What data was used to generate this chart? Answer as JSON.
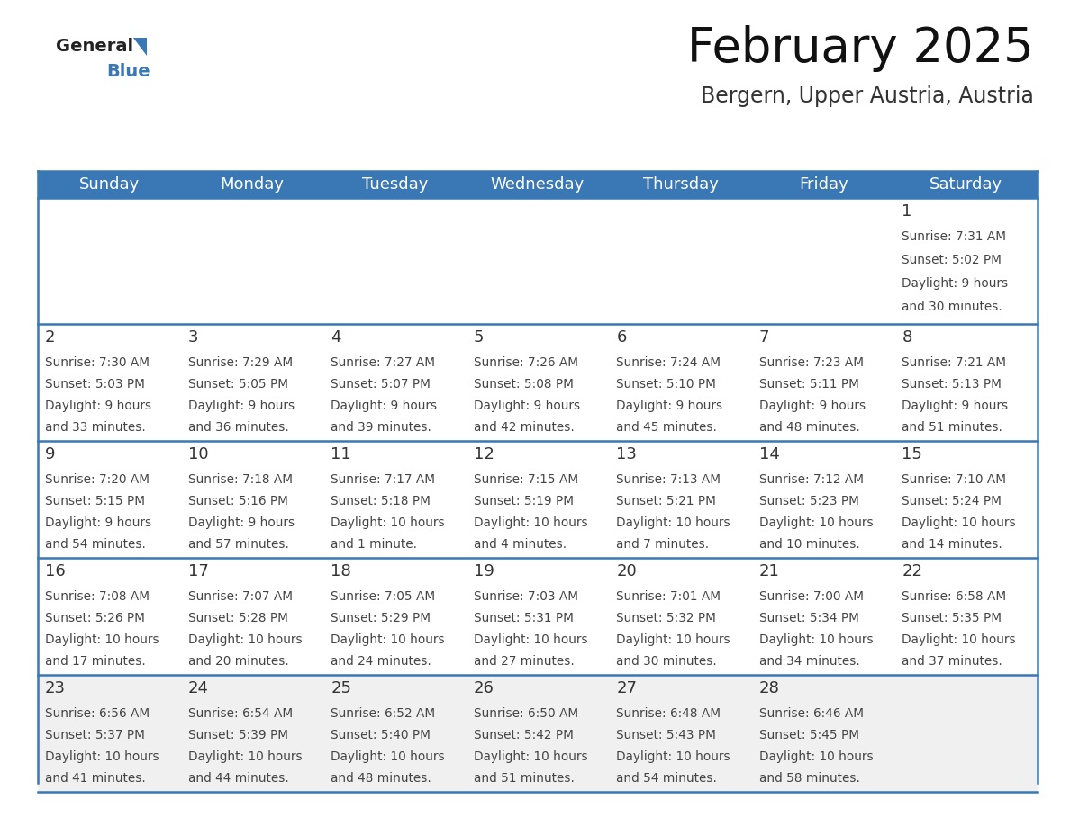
{
  "title": "February 2025",
  "subtitle": "Bergern, Upper Austria, Austria",
  "header_color": "#3978b5",
  "header_text_color": "#ffffff",
  "border_color": "#3978b5",
  "cell_bg_color": "#ffffff",
  "last_row_bg": "#f0f0f0",
  "text_color": "#444444",
  "day_names": [
    "Sunday",
    "Monday",
    "Tuesday",
    "Wednesday",
    "Thursday",
    "Friday",
    "Saturday"
  ],
  "title_fontsize": 38,
  "subtitle_fontsize": 17,
  "header_fontsize": 13,
  "day_num_fontsize": 13,
  "cell_fontsize": 9.8,
  "days": [
    {
      "day": 1,
      "col": 6,
      "row": 0,
      "sunrise": "7:31 AM",
      "sunset": "5:02 PM",
      "daylight_h": "9 hours",
      "daylight_m": "and 30 minutes."
    },
    {
      "day": 2,
      "col": 0,
      "row": 1,
      "sunrise": "7:30 AM",
      "sunset": "5:03 PM",
      "daylight_h": "9 hours",
      "daylight_m": "and 33 minutes."
    },
    {
      "day": 3,
      "col": 1,
      "row": 1,
      "sunrise": "7:29 AM",
      "sunset": "5:05 PM",
      "daylight_h": "9 hours",
      "daylight_m": "and 36 minutes."
    },
    {
      "day": 4,
      "col": 2,
      "row": 1,
      "sunrise": "7:27 AM",
      "sunset": "5:07 PM",
      "daylight_h": "9 hours",
      "daylight_m": "and 39 minutes."
    },
    {
      "day": 5,
      "col": 3,
      "row": 1,
      "sunrise": "7:26 AM",
      "sunset": "5:08 PM",
      "daylight_h": "9 hours",
      "daylight_m": "and 42 minutes."
    },
    {
      "day": 6,
      "col": 4,
      "row": 1,
      "sunrise": "7:24 AM",
      "sunset": "5:10 PM",
      "daylight_h": "9 hours",
      "daylight_m": "and 45 minutes."
    },
    {
      "day": 7,
      "col": 5,
      "row": 1,
      "sunrise": "7:23 AM",
      "sunset": "5:11 PM",
      "daylight_h": "9 hours",
      "daylight_m": "and 48 minutes."
    },
    {
      "day": 8,
      "col": 6,
      "row": 1,
      "sunrise": "7:21 AM",
      "sunset": "5:13 PM",
      "daylight_h": "9 hours",
      "daylight_m": "and 51 minutes."
    },
    {
      "day": 9,
      "col": 0,
      "row": 2,
      "sunrise": "7:20 AM",
      "sunset": "5:15 PM",
      "daylight_h": "9 hours",
      "daylight_m": "and 54 minutes."
    },
    {
      "day": 10,
      "col": 1,
      "row": 2,
      "sunrise": "7:18 AM",
      "sunset": "5:16 PM",
      "daylight_h": "9 hours",
      "daylight_m": "and 57 minutes."
    },
    {
      "day": 11,
      "col": 2,
      "row": 2,
      "sunrise": "7:17 AM",
      "sunset": "5:18 PM",
      "daylight_h": "10 hours",
      "daylight_m": "and 1 minute."
    },
    {
      "day": 12,
      "col": 3,
      "row": 2,
      "sunrise": "7:15 AM",
      "sunset": "5:19 PM",
      "daylight_h": "10 hours",
      "daylight_m": "and 4 minutes."
    },
    {
      "day": 13,
      "col": 4,
      "row": 2,
      "sunrise": "7:13 AM",
      "sunset": "5:21 PM",
      "daylight_h": "10 hours",
      "daylight_m": "and 7 minutes."
    },
    {
      "day": 14,
      "col": 5,
      "row": 2,
      "sunrise": "7:12 AM",
      "sunset": "5:23 PM",
      "daylight_h": "10 hours",
      "daylight_m": "and 10 minutes."
    },
    {
      "day": 15,
      "col": 6,
      "row": 2,
      "sunrise": "7:10 AM",
      "sunset": "5:24 PM",
      "daylight_h": "10 hours",
      "daylight_m": "and 14 minutes."
    },
    {
      "day": 16,
      "col": 0,
      "row": 3,
      "sunrise": "7:08 AM",
      "sunset": "5:26 PM",
      "daylight_h": "10 hours",
      "daylight_m": "and 17 minutes."
    },
    {
      "day": 17,
      "col": 1,
      "row": 3,
      "sunrise": "7:07 AM",
      "sunset": "5:28 PM",
      "daylight_h": "10 hours",
      "daylight_m": "and 20 minutes."
    },
    {
      "day": 18,
      "col": 2,
      "row": 3,
      "sunrise": "7:05 AM",
      "sunset": "5:29 PM",
      "daylight_h": "10 hours",
      "daylight_m": "and 24 minutes."
    },
    {
      "day": 19,
      "col": 3,
      "row": 3,
      "sunrise": "7:03 AM",
      "sunset": "5:31 PM",
      "daylight_h": "10 hours",
      "daylight_m": "and 27 minutes."
    },
    {
      "day": 20,
      "col": 4,
      "row": 3,
      "sunrise": "7:01 AM",
      "sunset": "5:32 PM",
      "daylight_h": "10 hours",
      "daylight_m": "and 30 minutes."
    },
    {
      "day": 21,
      "col": 5,
      "row": 3,
      "sunrise": "7:00 AM",
      "sunset": "5:34 PM",
      "daylight_h": "10 hours",
      "daylight_m": "and 34 minutes."
    },
    {
      "day": 22,
      "col": 6,
      "row": 3,
      "sunrise": "6:58 AM",
      "sunset": "5:35 PM",
      "daylight_h": "10 hours",
      "daylight_m": "and 37 minutes."
    },
    {
      "day": 23,
      "col": 0,
      "row": 4,
      "sunrise": "6:56 AM",
      "sunset": "5:37 PM",
      "daylight_h": "10 hours",
      "daylight_m": "and 41 minutes."
    },
    {
      "day": 24,
      "col": 1,
      "row": 4,
      "sunrise": "6:54 AM",
      "sunset": "5:39 PM",
      "daylight_h": "10 hours",
      "daylight_m": "and 44 minutes."
    },
    {
      "day": 25,
      "col": 2,
      "row": 4,
      "sunrise": "6:52 AM",
      "sunset": "5:40 PM",
      "daylight_h": "10 hours",
      "daylight_m": "and 48 minutes."
    },
    {
      "day": 26,
      "col": 3,
      "row": 4,
      "sunrise": "6:50 AM",
      "sunset": "5:42 PM",
      "daylight_h": "10 hours",
      "daylight_m": "and 51 minutes."
    },
    {
      "day": 27,
      "col": 4,
      "row": 4,
      "sunrise": "6:48 AM",
      "sunset": "5:43 PM",
      "daylight_h": "10 hours",
      "daylight_m": "and 54 minutes."
    },
    {
      "day": 28,
      "col": 5,
      "row": 4,
      "sunrise": "6:46 AM",
      "sunset": "5:45 PM",
      "daylight_h": "10 hours",
      "daylight_m": "and 58 minutes."
    }
  ]
}
